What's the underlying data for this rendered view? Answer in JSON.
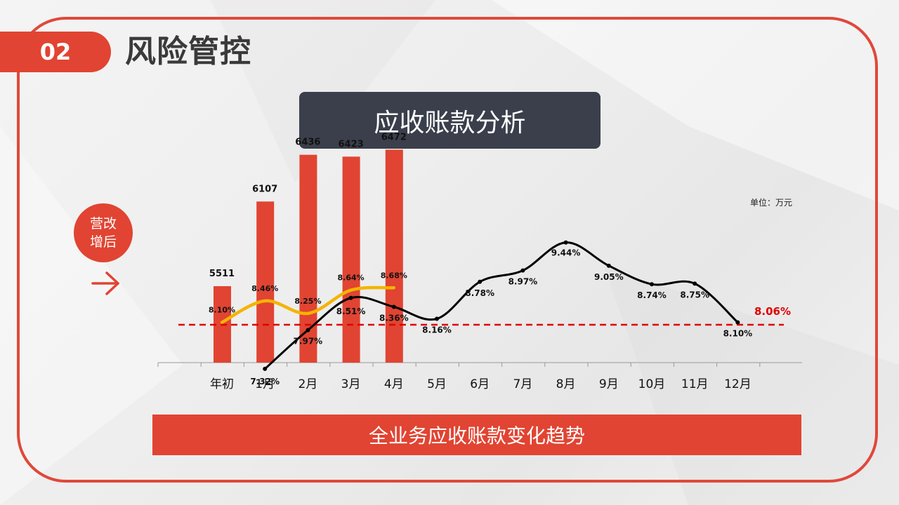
{
  "section": {
    "number": "02",
    "title": "风险管控"
  },
  "chart_title": "应收账款分析",
  "unit_label": "单位：万元",
  "badge": {
    "line1": "营改",
    "line2": "增后"
  },
  "icons": {
    "arrow": "arrow-right-icon"
  },
  "banner": "全业务应收账款变化趋势",
  "colors": {
    "accent": "#e14432",
    "dark": "#3a3f4b",
    "yellow": "#f4b400",
    "line": "#000000",
    "reference": "#e00000"
  },
  "chart_data": {
    "type": "bar",
    "categories": [
      "年初",
      "1月",
      "2月",
      "3月",
      "4月",
      "5月",
      "6月",
      "7月",
      "8月",
      "9月",
      "10月",
      "11月",
      "12月"
    ],
    "series": [
      {
        "values": [
          5511,
          6107,
          6436,
          6423,
          6472,
          null,
          null,
          null,
          null,
          null,
          null,
          null,
          null
        ],
        "labels": [
          "5511",
          "6107",
          "6436",
          "6423",
          "6472"
        ],
        "chart": "bar"
      },
      {
        "values": [
          8.1,
          8.46,
          8.25,
          8.64,
          8.68,
          null,
          null,
          null,
          null,
          null,
          null,
          null,
          null
        ],
        "labels": [
          "8.10%",
          "8.46%",
          "8.25%",
          "8.64%",
          "8.68%"
        ],
        "chart": "line"
      },
      {
        "values": [
          null,
          7.32,
          7.97,
          8.51,
          8.36,
          8.16,
          8.78,
          8.97,
          9.44,
          9.05,
          8.74,
          8.75,
          8.1
        ],
        "labels": [
          "",
          "7.32%",
          "7.97%",
          "8.51%",
          "8.36%",
          "8.16%",
          "8.78%",
          "8.97%",
          "9.44%",
          "9.05%",
          "8.74%",
          "8.75%",
          "8.10%"
        ],
        "chart": "line"
      }
    ],
    "reference_line": {
      "value": 8.06,
      "label": "8.06%"
    },
    "grid": false,
    "legend": "none"
  }
}
